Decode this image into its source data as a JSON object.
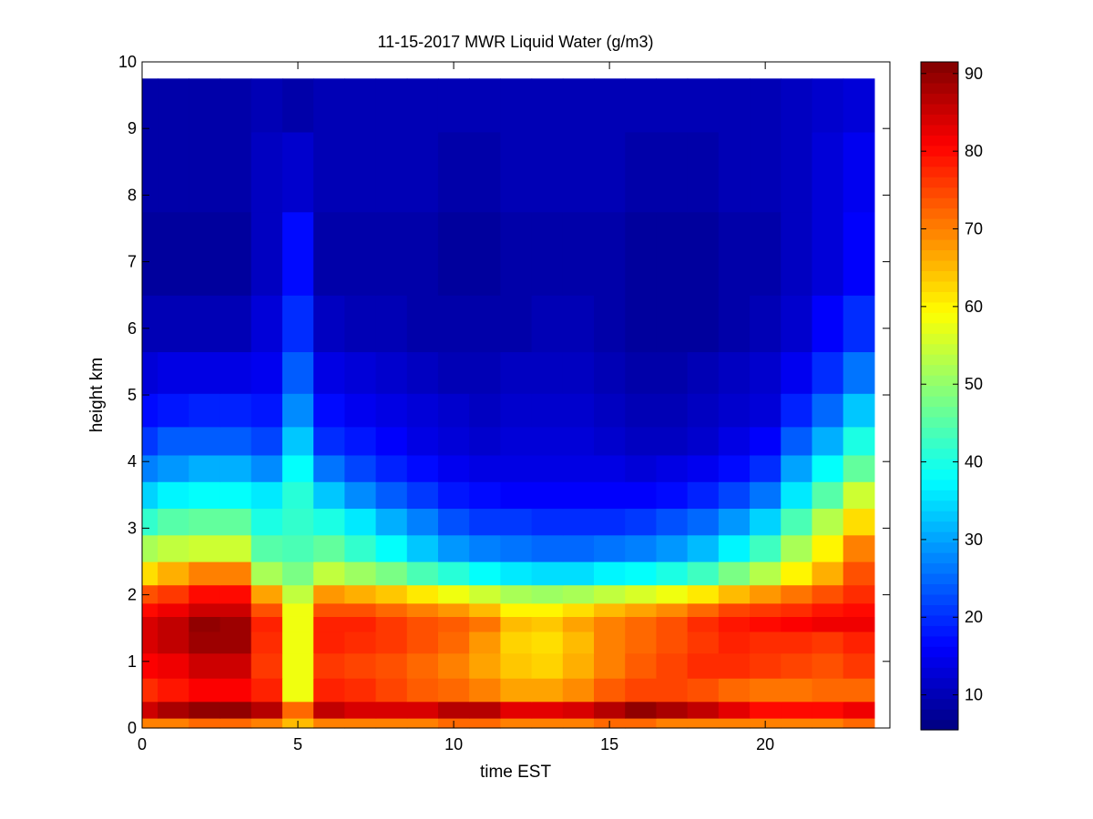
{
  "chart_data": {
    "type": "heatmap",
    "title": "11-15-2017 MWR Liquid Water (g/m3)",
    "xlabel": "time EST",
    "ylabel": "height km",
    "xlim": [
      0,
      24
    ],
    "ylim": [
      0,
      10
    ],
    "x_ticks": [
      0,
      5,
      10,
      15,
      20
    ],
    "y_ticks": [
      0,
      1,
      2,
      3,
      4,
      5,
      6,
      7,
      8,
      9,
      10
    ],
    "colormap": "jet",
    "color_range": [
      5.5,
      91.5
    ],
    "colorbar_ticks": [
      10,
      20,
      30,
      40,
      50,
      60,
      70,
      80,
      90
    ],
    "x": [
      0,
      1,
      2,
      3,
      4,
      5,
      6,
      7,
      8,
      9,
      10,
      11,
      12,
      13,
      14,
      15,
      16,
      17,
      18,
      19,
      20,
      21,
      22,
      23
    ],
    "y": [
      0.05,
      0.25,
      0.55,
      0.95,
      1.3,
      1.6,
      1.75,
      2.0,
      2.3,
      2.7,
      3.1,
      3.5,
      3.9,
      4.3,
      4.75,
      5.3,
      6.0,
      7.0,
      8.5,
      9.4
    ],
    "z": [
      [
        70,
        70,
        72,
        72,
        70,
        65,
        70,
        70,
        70,
        70,
        72,
        72,
        70,
        70,
        70,
        72,
        72,
        70,
        70,
        70,
        70,
        70,
        70,
        72
      ],
      [
        85,
        88,
        90,
        90,
        87,
        72,
        86,
        84,
        84,
        84,
        87,
        87,
        83,
        83,
        84,
        87,
        90,
        88,
        86,
        83,
        80,
        80,
        80,
        82
      ],
      [
        77,
        79,
        81,
        81,
        78,
        58,
        78,
        77,
        75,
        73,
        72,
        70,
        67,
        67,
        69,
        73,
        75,
        75,
        74,
        72,
        71,
        71,
        72,
        72
      ],
      [
        81,
        82,
        85,
        85,
        76,
        58,
        76,
        75,
        74,
        72,
        70,
        67,
        64,
        63,
        66,
        70,
        73,
        75,
        77,
        77,
        76,
        75,
        74,
        76
      ],
      [
        84,
        86,
        89,
        89,
        77,
        58,
        78,
        77,
        76,
        74,
        72,
        68,
        63,
        62,
        65,
        70,
        72,
        74,
        76,
        78,
        77,
        77,
        76,
        78
      ],
      [
        84,
        86,
        90,
        89,
        78,
        58,
        78,
        78,
        76,
        74,
        73,
        71,
        65,
        64,
        67,
        70,
        72,
        74,
        77,
        79,
        80,
        81,
        82,
        82
      ],
      [
        80,
        82,
        85,
        85,
        74,
        58,
        74,
        74,
        72,
        70,
        68,
        65,
        60,
        60,
        62,
        65,
        67,
        69,
        72,
        75,
        76,
        77,
        79,
        80
      ],
      [
        74,
        76,
        80,
        80,
        67,
        54,
        68,
        66,
        64,
        61,
        58,
        55,
        52,
        51,
        52,
        54,
        56,
        58,
        61,
        65,
        68,
        71,
        74,
        77
      ],
      [
        62,
        66,
        70,
        70,
        52,
        48,
        54,
        51,
        48,
        44,
        41,
        38,
        36,
        35,
        35,
        37,
        38,
        40,
        43,
        48,
        53,
        60,
        66,
        74
      ],
      [
        52,
        54,
        55,
        55,
        45,
        44,
        46,
        42,
        38,
        33,
        29,
        27,
        26,
        25,
        25,
        26,
        27,
        29,
        32,
        37,
        43,
        52,
        60,
        70
      ],
      [
        42,
        45,
        46,
        46,
        40,
        42,
        40,
        36,
        31,
        27,
        23,
        21,
        21,
        20,
        20,
        20,
        21,
        23,
        25,
        29,
        34,
        44,
        53,
        62
      ],
      [
        34,
        37,
        38,
        38,
        36,
        41,
        33,
        28,
        24,
        21,
        18,
        17,
        16,
        16,
        16,
        16,
        16,
        17,
        19,
        22,
        26,
        36,
        45,
        55
      ],
      [
        27,
        29,
        31,
        31,
        28,
        38,
        26,
        22,
        19,
        17,
        15,
        14,
        14,
        14,
        14,
        14,
        13,
        14,
        15,
        17,
        20,
        30,
        38,
        46
      ],
      [
        21,
        24,
        24,
        24,
        22,
        33,
        20,
        18,
        16,
        14,
        13,
        12,
        13,
        13,
        13,
        12,
        11,
        11,
        12,
        14,
        16,
        24,
        31,
        40
      ],
      [
        17,
        18,
        19,
        19,
        18,
        28,
        17,
        15,
        14,
        13,
        12,
        11,
        12,
        12,
        12,
        11,
        10,
        10,
        11,
        12,
        13,
        19,
        25,
        33
      ],
      [
        13,
        14,
        14,
        14,
        15,
        24,
        14,
        13,
        12,
        11,
        10,
        10,
        11,
        11,
        11,
        10,
        9,
        9,
        10,
        11,
        12,
        15,
        20,
        26
      ],
      [
        10,
        10,
        10,
        10,
        13,
        20,
        11,
        10,
        10,
        9,
        9,
        9,
        9,
        10,
        10,
        9,
        8,
        8,
        8,
        9,
        10,
        12,
        16,
        20
      ],
      [
        8,
        8,
        8,
        8,
        11,
        17,
        9,
        9,
        9,
        9,
        8,
        8,
        9,
        9,
        9,
        9,
        8,
        8,
        8,
        9,
        9,
        11,
        13,
        16
      ],
      [
        9,
        9,
        9,
        9,
        11,
        12,
        10,
        10,
        10,
        10,
        9,
        9,
        10,
        10,
        10,
        10,
        9,
        9,
        9,
        10,
        10,
        11,
        13,
        15
      ],
      [
        9,
        9,
        9,
        9,
        10,
        9,
        10,
        10,
        10,
        10,
        10,
        10,
        10,
        10,
        10,
        10,
        10,
        10,
        10,
        10,
        10,
        11,
        12,
        13
      ]
    ]
  }
}
